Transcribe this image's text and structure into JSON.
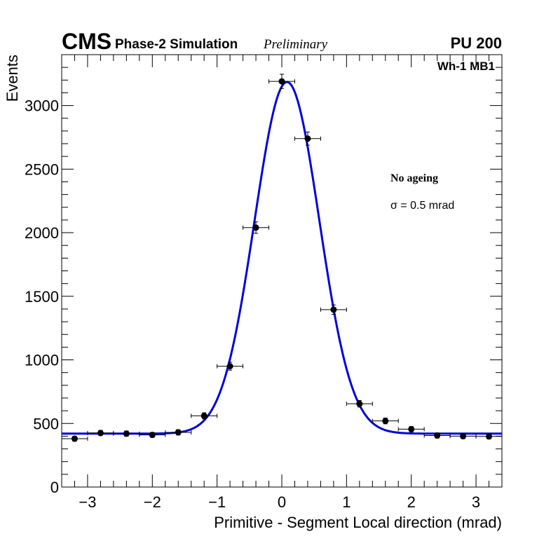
{
  "header": {
    "cms": "CMS",
    "subtitle": "Phase-2 Simulation",
    "preliminary": "Preliminary",
    "pileup": "PU 200"
  },
  "labels": {
    "station": "Wh-1 MB1",
    "condition": "No ageing",
    "sigma": "σ = 0.5 mrad"
  },
  "chart_data": {
    "type": "scatter",
    "title": "",
    "xlabel": "Primitive - Segment Local direction (mrad)",
    "ylabel": "Events",
    "xlim": [
      -3.4,
      3.4
    ],
    "ylim": [
      0,
      3400
    ],
    "x_ticks": [
      -3,
      -2,
      -1,
      0,
      1,
      2,
      3
    ],
    "x_tick_labels": [
      "−3",
      "−2",
      "−1",
      "0",
      "1",
      "2",
      "3"
    ],
    "y_ticks": [
      0,
      500,
      1000,
      1500,
      2000,
      2500,
      3000
    ],
    "y_tick_labels": [
      "0",
      "500",
      "1000",
      "1500",
      "2000",
      "2500",
      "3000"
    ],
    "grid": false,
    "series": [
      {
        "name": "Data",
        "marker": "circle",
        "color": "#000000",
        "x_err": 0.2,
        "points": [
          {
            "x": -3.2,
            "y": 380,
            "yerr": 20
          },
          {
            "x": -2.8,
            "y": 425,
            "yerr": 21
          },
          {
            "x": -2.4,
            "y": 420,
            "yerr": 21
          },
          {
            "x": -2.0,
            "y": 410,
            "yerr": 20
          },
          {
            "x": -1.6,
            "y": 430,
            "yerr": 21
          },
          {
            "x": -1.2,
            "y": 560,
            "yerr": 24
          },
          {
            "x": -0.8,
            "y": 950,
            "yerr": 31
          },
          {
            "x": -0.4,
            "y": 2040,
            "yerr": 45
          },
          {
            "x": 0.0,
            "y": 3190,
            "yerr": 56
          },
          {
            "x": 0.4,
            "y": 2740,
            "yerr": 52
          },
          {
            "x": 0.8,
            "y": 1395,
            "yerr": 37
          },
          {
            "x": 1.2,
            "y": 655,
            "yerr": 26
          },
          {
            "x": 1.6,
            "y": 520,
            "yerr": 23
          },
          {
            "x": 2.0,
            "y": 455,
            "yerr": 21
          },
          {
            "x": 2.4,
            "y": 405,
            "yerr": 20
          },
          {
            "x": 2.8,
            "y": 400,
            "yerr": 20
          },
          {
            "x": 3.2,
            "y": 398,
            "yerr": 20
          }
        ]
      },
      {
        "name": "Gaussian fit",
        "type": "line",
        "color": "#0000dd",
        "function": "gaussian+constant",
        "params": {
          "constant": 420,
          "amplitude": 2765,
          "mean": 0.08,
          "sigma": 0.5
        }
      }
    ]
  }
}
